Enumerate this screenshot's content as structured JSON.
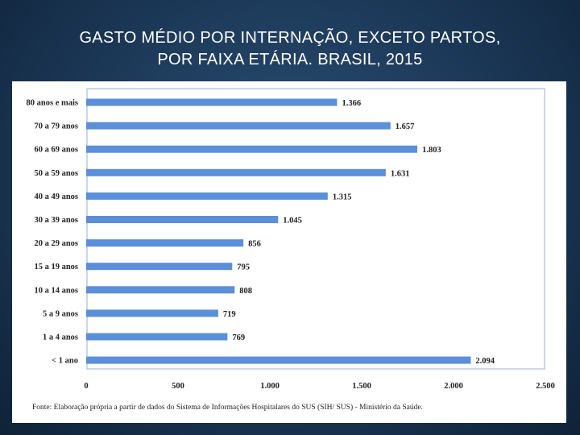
{
  "title_lines": [
    "GASTO MÉDIO POR INTERNAÇÃO, EXCETO PARTOS,",
    "POR FAIXA ETÁRIA. BRASIL, 2015"
  ],
  "colors": {
    "bar": "#5b8fd9",
    "frame": "#b7cbe6"
  },
  "chart_data": {
    "type": "bar",
    "orientation": "horizontal",
    "title": "GASTO MÉDIO POR INTERNAÇÃO, EXCETO PARTOS, POR FAIXA ETÁRIA. BRASIL, 2015",
    "categories": [
      "80 anos e mais",
      "70 a 79 anos",
      "60 a 69 anos",
      "50 a 59 anos",
      "40 a 49 anos",
      "30 a 39 anos",
      "20 a 29 anos",
      "15 a 19 anos",
      "10 a 14 anos",
      "5 a 9 anos",
      "1 a 4 anos",
      "< 1 ano"
    ],
    "values": [
      1366,
      1657,
      1803,
      1631,
      1315,
      1045,
      856,
      795,
      808,
      719,
      769,
      2094
    ],
    "value_labels": [
      "1.366",
      "1.657",
      "1.803",
      "1.631",
      "1.315",
      "1.045",
      "856",
      "795",
      "808",
      "719",
      "769",
      "2.094"
    ],
    "xlim": [
      0,
      2500
    ],
    "xticks": [
      0,
      500,
      1000,
      1500,
      2000,
      2500
    ],
    "xtick_labels": [
      "0",
      "500",
      "1.000",
      "1.500",
      "2.000",
      "2.500"
    ],
    "xlabel": "",
    "ylabel": "",
    "grid": false,
    "source": "Fonte: Elaboração própria a partir de dados do Sistema de Informações Hospitalares do SUS (SIH/ SUS) - Ministério da Saúde."
  }
}
